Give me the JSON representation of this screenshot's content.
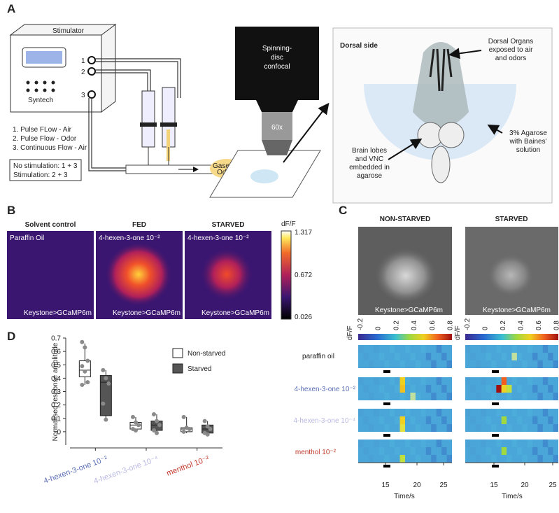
{
  "panel_a": {
    "letter": "A",
    "stimulator": "Stimulator",
    "ports": [
      "1",
      "2",
      "3"
    ],
    "brand": "Syntech",
    "flows": [
      "1. Pulse FLow - Air",
      "2. Pulse Flow - Odor",
      "3. Continuous Flow - Air"
    ],
    "modes": [
      "No stimulation: 1 + 3",
      "Stimulation: 2 + 3"
    ],
    "microscope": [
      "Spinning-",
      "disc",
      "confocal"
    ],
    "objective": "60x",
    "odour": [
      "Gaseous",
      "Odour"
    ],
    "inset_title": "Dorsal side",
    "dorsal_organs": [
      "Dorsal Organs",
      "exposed to air",
      "and odors"
    ],
    "agarose": [
      "3% Agarose",
      "with Baines'",
      "solution"
    ],
    "brain": [
      "Brain lobes",
      "and VNC",
      "embedded in",
      "agarose"
    ]
  },
  "panel_b": {
    "letter": "B",
    "titles": [
      "Solvent control",
      "FED",
      "STARVED"
    ],
    "stimuli": [
      "Paraffin Oil",
      "4-hexen-3-one 10⁻²",
      "4-hexen-3-one 10⁻²"
    ],
    "genotype": "Keystone>GCaMP6m",
    "colorbar_label": "dF/F",
    "colorbar_ticks": [
      1.317,
      0.672,
      0.026
    ]
  },
  "panel_c": {
    "letter": "C",
    "titles": [
      "NON-STARVED",
      "STARVED"
    ],
    "genotype": "Keystone>GCaMP6m",
    "colorbar_label": "dF/F",
    "colorbar_ticks": [
      -0.2,
      0,
      0.2,
      0.4,
      0.6,
      0.8
    ],
    "rows": [
      "paraffin oil",
      "4-hexen-3-one 10⁻²",
      "4-hexen-3-one 10⁻⁴",
      "menthol 10⁻²"
    ],
    "xticks": [
      15,
      20,
      25
    ],
    "xlabel": "Time/s"
  },
  "chart_data": {
    "type": "box",
    "letter": "D",
    "ylabel": "Normalised response amplitude",
    "ylim": [
      -0.1,
      0.7
    ],
    "yticks": [
      0,
      0.1,
      0.2,
      0.3,
      0.4,
      0.5,
      0.6,
      0.7
    ],
    "categories": [
      "4-hexen-3-one 10⁻²",
      "4-hexen-3-one 10⁻⁴",
      "menthol 10⁻²"
    ],
    "category_colors": [
      "#5b6fb5",
      "#b9b9e2",
      "#c0392b"
    ],
    "series": [
      {
        "name": "Non-starved",
        "color": "#ffffff",
        "boxes": [
          {
            "min": 0.35,
            "q1": 0.41,
            "median": 0.46,
            "q3": 0.53,
            "max": 0.66,
            "points": [
              0.67,
              0.63,
              0.53,
              0.49,
              0.45,
              0.37,
              0.35
            ]
          },
          {
            "min": 0,
            "q1": 0.02,
            "median": 0.05,
            "q3": 0.07,
            "max": 0.11,
            "points": [
              0.11,
              0.07,
              0.05,
              0.02,
              0.01
            ]
          },
          {
            "min": -0.01,
            "q1": 0,
            "median": 0.02,
            "q3": 0.03,
            "max": 0.11,
            "points": [
              0.11,
              0.03,
              0.02,
              0
            ]
          }
        ]
      },
      {
        "name": "Starved",
        "color": "#555555",
        "boxes": [
          {
            "min": 0.08,
            "q1": 0.12,
            "median": 0.37,
            "q3": 0.42,
            "max": 0.46,
            "points": [
              0.46,
              0.4,
              0.36,
              0.21,
              0.09
            ]
          },
          {
            "min": -0.01,
            "q1": 0.01,
            "median": 0.05,
            "q3": 0.08,
            "max": 0.13,
            "points": [
              0.13,
              0.08,
              0.05,
              0.01,
              -0.01
            ]
          },
          {
            "min": -0.02,
            "q1": -0.01,
            "median": 0.02,
            "q3": 0.05,
            "max": 0.08,
            "points": [
              0.08,
              0.04,
              0.02,
              -0.01,
              -0.02
            ]
          }
        ]
      }
    ]
  }
}
